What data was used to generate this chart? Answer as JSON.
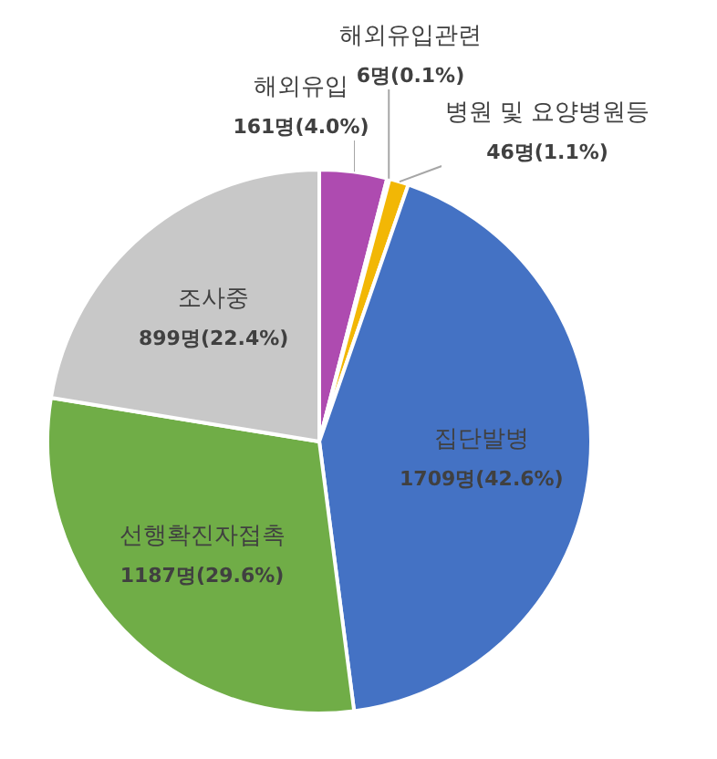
{
  "chart_data": {
    "type": "pie",
    "categories": [
      "해외유입",
      "해외유입관련",
      "병원 및 요양병원등",
      "집단발병",
      "선행확진자접촉",
      "조사중"
    ],
    "values": [
      161,
      6,
      46,
      1709,
      1187,
      899
    ],
    "value_labels": [
      "161명(4.0%)",
      "6명(0.1%)",
      "46명(1.1%)",
      "1709명(42.6%)",
      "1187명(29.6%)",
      "899명(22.4%)"
    ],
    "colors": [
      "#ae4bb0",
      "#d9d9d9",
      "#f2b705",
      "#4472c4",
      "#70ad47",
      "#c8c8c8"
    ],
    "legend": false
  }
}
